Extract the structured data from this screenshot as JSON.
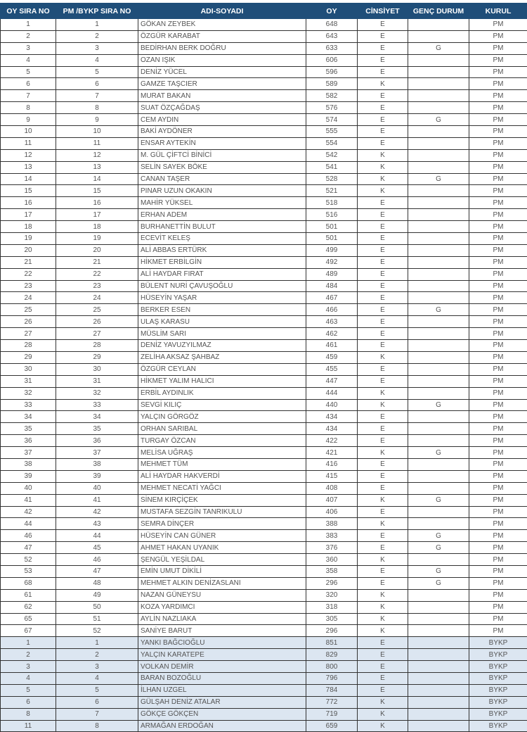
{
  "headers": [
    "OY SIRA NO",
    "PM /BYKP SIRA NO",
    "ADI-SOYADI",
    "OY",
    "CİNSİYET",
    "GENÇ DURUM",
    "KURUL"
  ],
  "colors": {
    "header_bg": "#1f4e79",
    "bykp_row_bg": "#dce6f1"
  },
  "rows": [
    [
      "1",
      "1",
      "GÖKAN ZEYBEK",
      "648",
      "E",
      "",
      "PM"
    ],
    [
      "2",
      "2",
      "ÖZGÜR KARABAT",
      "643",
      "E",
      "",
      "PM"
    ],
    [
      "3",
      "3",
      "BEDİRHAN BERK DOĞRU",
      "633",
      "E",
      "G",
      "PM"
    ],
    [
      "4",
      "4",
      "OZAN IŞIK",
      "606",
      "E",
      "",
      "PM"
    ],
    [
      "5",
      "5",
      "DENİZ YÜCEL",
      "596",
      "E",
      "",
      "PM"
    ],
    [
      "6",
      "6",
      "GAMZE TAŞCIER",
      "589",
      "K",
      "",
      "PM"
    ],
    [
      "7",
      "7",
      "MURAT BAKAN",
      "582",
      "E",
      "",
      "PM"
    ],
    [
      "8",
      "8",
      "SUAT ÖZÇAĞDAŞ",
      "576",
      "E",
      "",
      "PM"
    ],
    [
      "9",
      "9",
      "CEM AYDIN",
      "574",
      "E",
      "G",
      "PM"
    ],
    [
      "10",
      "10",
      "BAKİ AYDÖNER",
      "555",
      "E",
      "",
      "PM"
    ],
    [
      "11",
      "11",
      "ENSAR AYTEKİN",
      "554",
      "E",
      "",
      "PM"
    ],
    [
      "12",
      "12",
      "M. GÜL ÇİFTCİ BİNİCİ",
      "542",
      "K",
      "",
      "PM"
    ],
    [
      "13",
      "13",
      "SELİN SAYEK BÖKE",
      "541",
      "K",
      "",
      "PM"
    ],
    [
      "14",
      "14",
      "CANAN TAŞER",
      "528",
      "K",
      "G",
      "PM"
    ],
    [
      "15",
      "15",
      "PINAR UZUN OKAKIN",
      "521",
      "K",
      "",
      "PM"
    ],
    [
      "16",
      "16",
      "MAHİR YÜKSEL",
      "518",
      "E",
      "",
      "PM"
    ],
    [
      "17",
      "17",
      "ERHAN ADEM",
      "516",
      "E",
      "",
      "PM"
    ],
    [
      "18",
      "18",
      "BURHANETTİN BULUT",
      "501",
      "E",
      "",
      "PM"
    ],
    [
      "19",
      "19",
      "ECEVİT KELEŞ",
      "501",
      "E",
      "",
      "PM"
    ],
    [
      "20",
      "20",
      "ALİ ABBAS ERTÜRK",
      "499",
      "E",
      "",
      "PM"
    ],
    [
      "21",
      "21",
      "HİKMET ERBİLGİN",
      "492",
      "E",
      "",
      "PM"
    ],
    [
      "22",
      "22",
      "ALİ HAYDAR FIRAT",
      "489",
      "E",
      "",
      "PM"
    ],
    [
      "23",
      "23",
      "BÜLENT NURİ ÇAVUŞOĞLU",
      "484",
      "E",
      "",
      "PM"
    ],
    [
      "24",
      "24",
      "HÜSEYİN YAŞAR",
      "467",
      "E",
      "",
      "PM"
    ],
    [
      "25",
      "25",
      "BERKER ESEN",
      "466",
      "E",
      "G",
      "PM"
    ],
    [
      "26",
      "26",
      "ULAŞ KARASU",
      "463",
      "E",
      "",
      "PM"
    ],
    [
      "27",
      "27",
      "MÜSLİM SARI",
      "462",
      "E",
      "",
      "PM"
    ],
    [
      "28",
      "28",
      "DENİZ YAVUZYILMAZ",
      "461",
      "E",
      "",
      "PM"
    ],
    [
      "29",
      "29",
      "ZELİHA AKSAZ ŞAHBAZ",
      "459",
      "K",
      "",
      "PM"
    ],
    [
      "30",
      "30",
      "ÖZGÜR CEYLAN",
      "455",
      "E",
      "",
      "PM"
    ],
    [
      "31",
      "31",
      "HİKMET YALIM HALICI",
      "447",
      "E",
      "",
      "PM"
    ],
    [
      "32",
      "32",
      "ERBİL AYDINLIK",
      "444",
      "K",
      "",
      "PM"
    ],
    [
      "33",
      "33",
      "SEVGİ KILIÇ",
      "440",
      "K",
      "G",
      "PM"
    ],
    [
      "34",
      "34",
      "YALÇIN GÖRGÖZ",
      "434",
      "E",
      "",
      "PM"
    ],
    [
      "35",
      "35",
      "ORHAN SARIBAL",
      "434",
      "E",
      "",
      "PM"
    ],
    [
      "36",
      "36",
      "TURGAY ÖZCAN",
      "422",
      "E",
      "",
      "PM"
    ],
    [
      "37",
      "37",
      "MELİSA UĞRAŞ",
      "421",
      "K",
      "G",
      "PM"
    ],
    [
      "38",
      "38",
      "MEHMET TÜM",
      "416",
      "E",
      "",
      "PM"
    ],
    [
      "39",
      "39",
      "ALİ HAYDAR HAKVERDİ",
      "415",
      "E",
      "",
      "PM"
    ],
    [
      "40",
      "40",
      "MEHMET NECATİ YAĞCI",
      "408",
      "E",
      "",
      "PM"
    ],
    [
      "41",
      "41",
      "SİNEM KIRÇİÇEK",
      "407",
      "K",
      "G",
      "PM"
    ],
    [
      "42",
      "42",
      "MUSTAFA SEZGİN TANRIKULU",
      "406",
      "E",
      "",
      "PM"
    ],
    [
      "44",
      "43",
      "SEMRA DİNÇER",
      "388",
      "K",
      "",
      "PM"
    ],
    [
      "46",
      "44",
      "HÜSEYİN CAN GÜNER",
      "383",
      "E",
      "G",
      "PM"
    ],
    [
      "47",
      "45",
      "AHMET HAKAN UYANIK",
      "376",
      "E",
      "G",
      "PM"
    ],
    [
      "52",
      "46",
      "ŞENGÜL YEŞİLDAL",
      "360",
      "K",
      "",
      "PM"
    ],
    [
      "53",
      "47",
      "EMİN UMUT DİKİLİ",
      "358",
      "E",
      "G",
      "PM"
    ],
    [
      "68",
      "48",
      "MEHMET ALKIN DENİZASLANI",
      "296",
      "E",
      "G",
      "PM"
    ],
    [
      "61",
      "49",
      "NAZAN GÜNEYSU",
      "320",
      "K",
      "",
      "PM"
    ],
    [
      "62",
      "50",
      "KOZA YARDIMCI",
      "318",
      "K",
      "",
      "PM"
    ],
    [
      "65",
      "51",
      "AYLİN NAZLIAKA",
      "305",
      "K",
      "",
      "PM"
    ],
    [
      "67",
      "52",
      "SANİYE BARUT",
      "296",
      "K",
      "",
      "PM"
    ],
    [
      "1",
      "1",
      "YANKI BAĞCIOĞLU",
      "851",
      "E",
      "",
      "BYKP"
    ],
    [
      "2",
      "2",
      "YALÇIN KARATEPE",
      "829",
      "E",
      "",
      "BYKP"
    ],
    [
      "3",
      "3",
      "VOLKAN DEMİR",
      "800",
      "E",
      "",
      "BYKP"
    ],
    [
      "4",
      "4",
      "BARAN BOZOĞLU",
      "796",
      "E",
      "",
      "BYKP"
    ],
    [
      "5",
      "5",
      "İLHAN UZGEL",
      "784",
      "E",
      "",
      "BYKP"
    ],
    [
      "6",
      "6",
      "GÜLŞAH DENİZ ATALAR",
      "772",
      "K",
      "",
      "BYKP"
    ],
    [
      "8",
      "7",
      "GÖKÇE GÖKÇEN",
      "719",
      "K",
      "",
      "BYKP"
    ],
    [
      "11",
      "8",
      "ARMAĞAN ERDOĞAN",
      "659",
      "K",
      "",
      "BYKP"
    ]
  ]
}
